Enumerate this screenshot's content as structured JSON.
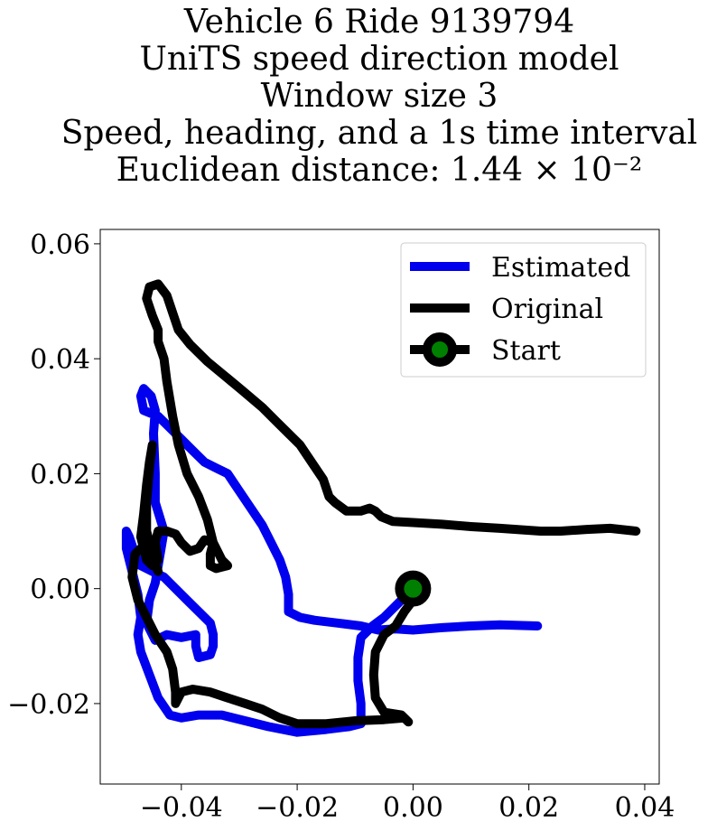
{
  "chart_data": {
    "type": "line",
    "title_lines": [
      "Vehicle 6 Ride 9139794",
      "UniTS speed direction model",
      "Window size 3",
      "Speed, heading, and a 1s time interval",
      "Euclidean distance: 1.44 × 10⁻²"
    ],
    "xlabel": "",
    "ylabel": "",
    "xlim": [
      -0.054,
      0.0425
    ],
    "ylim": [
      -0.034,
      0.0625
    ],
    "xticks": [
      -0.04,
      -0.02,
      0.0,
      0.02,
      0.04
    ],
    "xtick_labels": [
      "−0.04",
      "−0.02",
      "0.00",
      "0.02",
      "0.04"
    ],
    "yticks": [
      -0.02,
      0.0,
      0.02,
      0.04,
      0.06
    ],
    "ytick_labels": [
      "−0.02",
      "0.00",
      "0.02",
      "0.04",
      "0.06"
    ],
    "grid": false,
    "legend_position": "upper right",
    "series": [
      {
        "name": "Estimated",
        "color": "#0000ee",
        "points": [
          [
            0.0215,
            -0.0065
          ],
          [
            0.015,
            -0.0063
          ],
          [
            0.01,
            -0.0065
          ],
          [
            0.005,
            -0.0068
          ],
          [
            0.0,
            -0.0072
          ],
          [
            -0.003,
            -0.007
          ],
          [
            -0.006,
            -0.0072
          ],
          [
            -0.009,
            -0.0065
          ],
          [
            -0.013,
            -0.006
          ],
          [
            -0.017,
            -0.0055
          ],
          [
            -0.0195,
            -0.005
          ],
          [
            -0.0215,
            -0.004
          ],
          [
            -0.0215,
            -0.003
          ],
          [
            -0.0215,
            -0.001
          ],
          [
            -0.022,
            0.002
          ],
          [
            -0.023,
            0.005
          ],
          [
            -0.0245,
            0.008
          ],
          [
            -0.026,
            0.011
          ],
          [
            -0.028,
            0.014
          ],
          [
            -0.03,
            0.017
          ],
          [
            -0.032,
            0.02
          ],
          [
            -0.034,
            0.021
          ],
          [
            -0.036,
            0.022
          ],
          [
            -0.038,
            0.024
          ],
          [
            -0.04,
            0.026
          ],
          [
            -0.042,
            0.028
          ],
          [
            -0.044,
            0.03
          ],
          [
            -0.0465,
            0.031
          ],
          [
            -0.047,
            0.0335
          ],
          [
            -0.0465,
            0.0348
          ],
          [
            -0.0452,
            0.0335
          ],
          [
            -0.0445,
            0.031
          ],
          [
            -0.0448,
            0.027
          ],
          [
            -0.0445,
            0.02
          ],
          [
            -0.0445,
            0.015
          ],
          [
            -0.043,
            0.01
          ],
          [
            -0.0435,
            0.007
          ],
          [
            -0.0445,
            0.001
          ],
          [
            -0.0455,
            -0.002
          ],
          [
            -0.046,
            -0.006
          ],
          [
            -0.0445,
            -0.009
          ],
          [
            -0.0425,
            -0.008
          ],
          [
            -0.04,
            -0.0085
          ],
          [
            -0.0375,
            -0.008
          ],
          [
            -0.0375,
            -0.01
          ],
          [
            -0.037,
            -0.012
          ],
          [
            -0.035,
            -0.0115
          ],
          [
            -0.0345,
            -0.01
          ],
          [
            -0.0345,
            -0.008
          ],
          [
            -0.035,
            -0.006
          ],
          [
            -0.037,
            -0.004
          ],
          [
            -0.039,
            -0.002
          ],
          [
            -0.041,
            0.0
          ],
          [
            -0.043,
            0.002
          ],
          [
            -0.045,
            0.003
          ],
          [
            -0.047,
            0.004
          ],
          [
            -0.048,
            0.006
          ],
          [
            -0.049,
            0.009
          ],
          [
            -0.0495,
            0.01
          ],
          [
            -0.0495,
            0.007
          ],
          [
            -0.0485,
            0.003
          ],
          [
            -0.0475,
            -0.001
          ],
          [
            -0.047,
            -0.005
          ],
          [
            -0.0475,
            -0.008
          ],
          [
            -0.047,
            -0.011
          ],
          [
            -0.0455,
            -0.015
          ],
          [
            -0.044,
            -0.019
          ],
          [
            -0.042,
            -0.022
          ],
          [
            -0.04,
            -0.0225
          ],
          [
            -0.037,
            -0.022
          ],
          [
            -0.033,
            -0.022
          ],
          [
            -0.029,
            -0.023
          ],
          [
            -0.025,
            -0.024
          ],
          [
            -0.02,
            -0.025
          ],
          [
            -0.015,
            -0.0245
          ],
          [
            -0.011,
            -0.024
          ],
          [
            -0.009,
            -0.0235
          ],
          [
            -0.009,
            -0.02
          ],
          [
            -0.0095,
            -0.016
          ],
          [
            -0.0095,
            -0.012
          ],
          [
            -0.009,
            -0.0085
          ],
          [
            -0.007,
            -0.0065
          ],
          [
            -0.005,
            -0.005
          ],
          [
            -0.003,
            -0.003
          ],
          [
            -0.0015,
            -0.0015
          ],
          [
            0.0,
            0.0
          ]
        ]
      },
      {
        "name": "Original",
        "color": "#000000",
        "points": [
          [
            0.0385,
            0.01
          ],
          [
            0.034,
            0.0105
          ],
          [
            0.03,
            0.0103
          ],
          [
            0.0255,
            0.01
          ],
          [
            0.022,
            0.01
          ],
          [
            0.015,
            0.0105
          ],
          [
            0.01,
            0.0108
          ],
          [
            0.005,
            0.0112
          ],
          [
            0.0,
            0.0115
          ],
          [
            -0.0035,
            0.0117
          ],
          [
            -0.0055,
            0.0125
          ],
          [
            -0.0065,
            0.0135
          ],
          [
            -0.0075,
            0.014
          ],
          [
            -0.009,
            0.0135
          ],
          [
            -0.0115,
            0.0135
          ],
          [
            -0.0135,
            0.015
          ],
          [
            -0.0145,
            0.016
          ],
          [
            -0.0155,
            0.019
          ],
          [
            -0.0175,
            0.022
          ],
          [
            -0.0195,
            0.025
          ],
          [
            -0.0215,
            0.027
          ],
          [
            -0.0235,
            0.029
          ],
          [
            -0.026,
            0.0315
          ],
          [
            -0.0295,
            0.0345
          ],
          [
            -0.0325,
            0.037
          ],
          [
            -0.0355,
            0.0395
          ],
          [
            -0.0385,
            0.0425
          ],
          [
            -0.0405,
            0.045
          ],
          [
            -0.0415,
            0.048
          ],
          [
            -0.0425,
            0.051
          ],
          [
            -0.044,
            0.053
          ],
          [
            -0.0455,
            0.0525
          ],
          [
            -0.046,
            0.0505
          ],
          [
            -0.045,
            0.0475
          ],
          [
            -0.044,
            0.045
          ],
          [
            -0.044,
            0.043
          ],
          [
            -0.043,
            0.04
          ],
          [
            -0.0425,
            0.036
          ],
          [
            -0.0415,
            0.03
          ],
          [
            -0.0405,
            0.025
          ],
          [
            -0.039,
            0.02
          ],
          [
            -0.037,
            0.016
          ],
          [
            -0.0355,
            0.012
          ],
          [
            -0.0345,
            0.008
          ],
          [
            -0.033,
            0.005
          ],
          [
            -0.032,
            0.004
          ],
          [
            -0.034,
            0.0035
          ],
          [
            -0.035,
            0.004
          ],
          [
            -0.035,
            0.006
          ],
          [
            -0.0345,
            0.008
          ],
          [
            -0.036,
            0.0085
          ],
          [
            -0.037,
            0.007
          ],
          [
            -0.0385,
            0.0065
          ],
          [
            -0.04,
            0.008
          ],
          [
            -0.041,
            0.0095
          ],
          [
            -0.0425,
            0.01
          ],
          [
            -0.044,
            0.01
          ],
          [
            -0.0445,
            0.008
          ],
          [
            -0.044,
            0.005
          ],
          [
            -0.045,
            0.004
          ],
          [
            -0.046,
            0.005
          ],
          [
            -0.047,
            0.009
          ],
          [
            -0.0465,
            0.013
          ],
          [
            -0.046,
            0.018
          ],
          [
            -0.0455,
            0.022
          ],
          [
            -0.045,
            0.025
          ],
          [
            -0.0455,
            0.021
          ],
          [
            -0.046,
            0.015
          ],
          [
            -0.046,
            0.01
          ],
          [
            -0.045,
            0.006
          ],
          [
            -0.044,
            0.003
          ],
          [
            -0.045,
            0.005
          ],
          [
            -0.047,
            0.007
          ],
          [
            -0.048,
            0.006
          ],
          [
            -0.0485,
            0.002
          ],
          [
            -0.0475,
            -0.002
          ],
          [
            -0.046,
            -0.005
          ],
          [
            -0.0445,
            -0.008
          ],
          [
            -0.0425,
            -0.011
          ],
          [
            -0.0415,
            -0.014
          ],
          [
            -0.041,
            -0.018
          ],
          [
            -0.041,
            -0.02
          ],
          [
            -0.04,
            -0.018
          ],
          [
            -0.038,
            -0.0175
          ],
          [
            -0.035,
            -0.018
          ],
          [
            -0.032,
            -0.019
          ],
          [
            -0.029,
            -0.02
          ],
          [
            -0.026,
            -0.021
          ],
          [
            -0.023,
            -0.0225
          ],
          [
            -0.02,
            -0.0235
          ],
          [
            -0.015,
            -0.0235
          ],
          [
            -0.01,
            -0.023
          ],
          [
            -0.005,
            -0.0228
          ],
          [
            -0.0015,
            -0.0225
          ],
          [
            -0.0008,
            -0.0232
          ],
          [
            -0.002,
            -0.022
          ],
          [
            -0.005,
            -0.0215
          ],
          [
            -0.0065,
            -0.019
          ],
          [
            -0.0068,
            -0.015
          ],
          [
            -0.0065,
            -0.011
          ],
          [
            -0.005,
            -0.008
          ],
          [
            -0.003,
            -0.0065
          ],
          [
            -0.0015,
            -0.004
          ],
          [
            0.0,
            -0.002
          ],
          [
            0.0,
            0.0
          ]
        ]
      }
    ],
    "start": {
      "name": "Start",
      "x": 0.0,
      "y": 0.0,
      "marker_face": "#008000",
      "marker_edge": "#000000"
    }
  }
}
